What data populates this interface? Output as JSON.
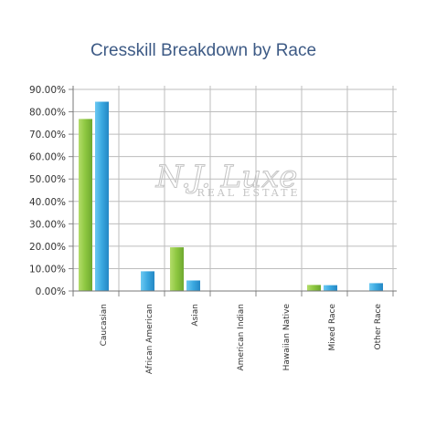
{
  "chart_data": {
    "type": "bar",
    "title": "Cresskill Breakdown by Race",
    "xlabel": "",
    "ylabel": "",
    "categories": [
      "Caucasian",
      "African American",
      "Asian",
      "American Indian",
      "Hawaiian Native",
      "Mixed Race",
      "Other Race"
    ],
    "series": [
      {
        "values": [
          76.8,
          0,
          19.5,
          0,
          0,
          2.7,
          0
        ],
        "color": "#8cc63f"
      },
      {
        "values": [
          84.5,
          8.8,
          4.7,
          0,
          0,
          2.6,
          3.5
        ],
        "color": "#3aa8e0"
      }
    ],
    "y_ticks": [
      "0.00%",
      "10.00%",
      "20.00%",
      "30.00%",
      "40.00%",
      "50.00%",
      "60.00%",
      "70.00%",
      "80.00%",
      "90.00%"
    ],
    "ylim": [
      0,
      90
    ],
    "grid": true
  },
  "watermark": {
    "main": "N.J. Luxe",
    "sub": "REAL ESTATE"
  }
}
